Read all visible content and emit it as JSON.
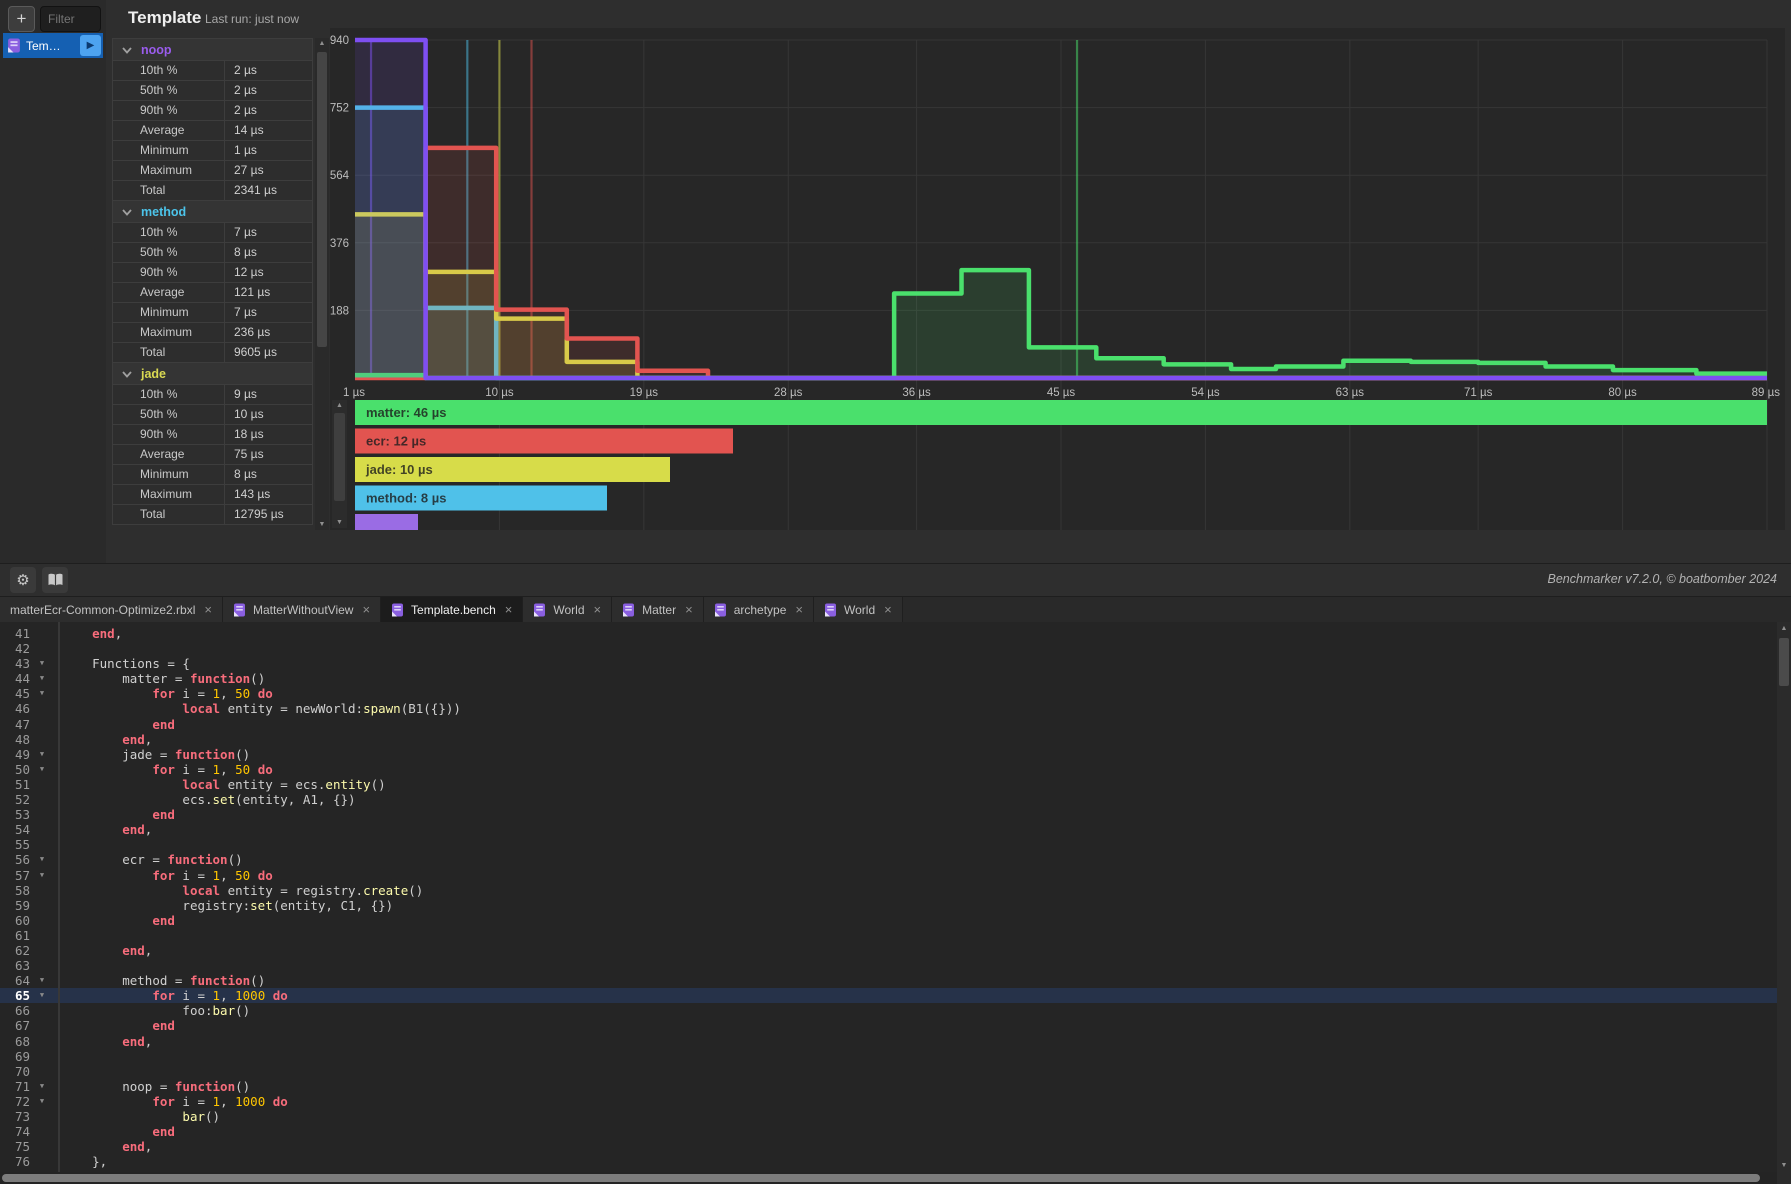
{
  "ui": {
    "add_button_glyph": "+",
    "filter_placeholder": "Filter",
    "play_glyph": "▶",
    "scroll_up_glyph": "▲",
    "scroll_down_glyph": "▼",
    "close_glyph": "×",
    "fold_glyph": "▼",
    "gear_glyph": "⚙"
  },
  "benchmark_list": {
    "items": [
      {
        "label": "Tem…",
        "selected": true
      }
    ]
  },
  "header": {
    "title": "Template",
    "last_run": "Last run: just now"
  },
  "stats": {
    "row_labels": [
      "10th %",
      "50th %",
      "90th %",
      "Average",
      "Minimum",
      "Maximum",
      "Total"
    ],
    "sections": [
      {
        "name": "noop",
        "color": "#9a5ced",
        "rows": [
          [
            "10th %",
            "2 µs"
          ],
          [
            "50th %",
            "2 µs"
          ],
          [
            "90th %",
            "2 µs"
          ],
          [
            "Average",
            "14 µs"
          ],
          [
            "Minimum",
            "1 µs"
          ],
          [
            "Maximum",
            "27 µs"
          ],
          [
            "Total",
            "2341 µs"
          ]
        ]
      },
      {
        "name": "method",
        "color": "#4cc4ea",
        "rows": [
          [
            "10th %",
            "7 µs"
          ],
          [
            "50th %",
            "8 µs"
          ],
          [
            "90th %",
            "12 µs"
          ],
          [
            "Average",
            "121 µs"
          ],
          [
            "Minimum",
            "7 µs"
          ],
          [
            "Maximum",
            "236 µs"
          ],
          [
            "Total",
            "9605 µs"
          ]
        ]
      },
      {
        "name": "jade",
        "color": "#d9d952",
        "rows": [
          [
            "10th %",
            "9 µs"
          ],
          [
            "50th %",
            "10 µs"
          ],
          [
            "90th %",
            "18 µs"
          ],
          [
            "Average",
            "75 µs"
          ],
          [
            "Minimum",
            "8 µs"
          ],
          [
            "Maximum",
            "143 µs"
          ],
          [
            "Total",
            "12795 µs"
          ]
        ]
      }
    ]
  },
  "chart_data": {
    "type": "histogram-step",
    "title": "Benchmark run-time distribution (counts vs microseconds)",
    "x_ticks": [
      "1 µs",
      "10 µs",
      "19 µs",
      "28 µs",
      "36 µs",
      "45 µs",
      "54 µs",
      "63 µs",
      "71 µs",
      "80 µs",
      "89 µs"
    ],
    "x_tick_values": [
      1,
      10,
      19,
      28,
      36,
      45,
      54,
      63,
      71,
      80,
      89
    ],
    "y_ticks": [
      188,
      376,
      564,
      752,
      940
    ],
    "x_range_us": [
      1,
      89
    ],
    "y_range": [
      0,
      940
    ],
    "grid": true,
    "series_draw_order_note": "listed back-to-front",
    "series": [
      {
        "name": "method",
        "color": "#4fc1e9",
        "p50_us": 8,
        "steps": [
          [
            1,
            752
          ],
          [
            5.4,
            195
          ],
          [
            9.8,
            0
          ]
        ]
      },
      {
        "name": "jade",
        "color": "#d7dc49",
        "p50_us": 10,
        "steps": [
          [
            1,
            455
          ],
          [
            5.4,
            295
          ],
          [
            9.8,
            165
          ],
          [
            14.2,
            45
          ],
          [
            18.6,
            0
          ]
        ]
      },
      {
        "name": "ecr",
        "color": "#e25450",
        "p50_us": 12,
        "steps": [
          [
            1,
            0
          ],
          [
            5.4,
            640
          ],
          [
            9.8,
            190
          ],
          [
            14.2,
            110
          ],
          [
            18.6,
            20
          ],
          [
            23,
            0
          ]
        ]
      },
      {
        "name": "matter",
        "color": "#4ae06c",
        "p50_us": 46,
        "steps": [
          [
            1,
            8
          ],
          [
            5.4,
            0
          ],
          [
            34.6,
            235
          ],
          [
            38.8,
            300
          ],
          [
            43,
            85
          ],
          [
            47.2,
            55
          ],
          [
            51.4,
            38
          ],
          [
            55.6,
            25
          ],
          [
            58.4,
            32
          ],
          [
            62.6,
            48
          ],
          [
            66.8,
            45
          ],
          [
            71,
            42
          ],
          [
            75.2,
            32
          ],
          [
            79.4,
            22
          ],
          [
            84.6,
            12
          ]
        ]
      },
      {
        "name": "noop",
        "color": "#7e4ff2",
        "p50_us": 2,
        "steps": [
          [
            1,
            940
          ],
          [
            5.4,
            0
          ]
        ]
      }
    ],
    "legend_bars": [
      {
        "name": "matter",
        "label": "matter: 46 µs",
        "value_us": 46,
        "color": "#4ae06c"
      },
      {
        "name": "ecr",
        "label": "ecr: 12 µs",
        "value_us": 12,
        "color": "#e25450"
      },
      {
        "name": "jade",
        "label": "jade: 10 µs",
        "value_us": 10,
        "color": "#d7dc49"
      },
      {
        "name": "method",
        "label": "method: 8 µs",
        "value_us": 8,
        "color": "#4fc1e9"
      },
      {
        "name": "noop",
        "label": "",
        "value_us": 2,
        "color": "#9a6ce4"
      }
    ]
  },
  "toolbar": {
    "credit": "Benchmarker v7.2.0, © boatbomber 2024"
  },
  "tabs": [
    {
      "label": "matterEcr-Common-Optimize2.rbxl",
      "icon": false,
      "active": false
    },
    {
      "label": "MatterWithoutView",
      "icon": true,
      "active": false
    },
    {
      "label": "Template.bench",
      "icon": true,
      "active": true
    },
    {
      "label": "World",
      "icon": true,
      "active": false
    },
    {
      "label": "Matter",
      "icon": true,
      "active": false
    },
    {
      "label": "archetype",
      "icon": true,
      "active": false
    },
    {
      "label": "World",
      "icon": true,
      "active": false
    }
  ],
  "editor": {
    "lines": [
      {
        "n": 41,
        "indent": 1,
        "fold": false,
        "current": false,
        "tokens": [
          [
            "kw",
            "end"
          ],
          [
            "txt",
            ","
          ]
        ]
      },
      {
        "n": 42,
        "indent": 0,
        "fold": false,
        "current": false,
        "tokens": []
      },
      {
        "n": 43,
        "indent": 1,
        "fold": true,
        "current": false,
        "tokens": [
          [
            "txt",
            "Functions = {"
          ]
        ]
      },
      {
        "n": 44,
        "indent": 2,
        "fold": true,
        "current": false,
        "tokens": [
          [
            "txt",
            "matter = "
          ],
          [
            "kw",
            "function"
          ],
          [
            "txt",
            "()"
          ]
        ]
      },
      {
        "n": 45,
        "indent": 3,
        "fold": true,
        "current": false,
        "tokens": [
          [
            "kw",
            "for"
          ],
          [
            "txt",
            " i = "
          ],
          [
            "num",
            "1"
          ],
          [
            "txt",
            ", "
          ],
          [
            "num",
            "50"
          ],
          [
            "txt",
            " "
          ],
          [
            "kw",
            "do"
          ]
        ]
      },
      {
        "n": 46,
        "indent": 4,
        "fold": false,
        "current": false,
        "tokens": [
          [
            "kw",
            "local"
          ],
          [
            "txt",
            " entity = newWorld:"
          ],
          [
            "fn",
            "spawn"
          ],
          [
            "txt",
            "(B1({}))"
          ]
        ]
      },
      {
        "n": 47,
        "indent": 3,
        "fold": false,
        "current": false,
        "tokens": [
          [
            "kw",
            "end"
          ]
        ]
      },
      {
        "n": 48,
        "indent": 2,
        "fold": false,
        "current": false,
        "tokens": [
          [
            "kw",
            "end"
          ],
          [
            "txt",
            ","
          ]
        ]
      },
      {
        "n": 49,
        "indent": 2,
        "fold": true,
        "current": false,
        "tokens": [
          [
            "txt",
            "jade = "
          ],
          [
            "kw",
            "function"
          ],
          [
            "txt",
            "()"
          ]
        ]
      },
      {
        "n": 50,
        "indent": 3,
        "fold": true,
        "current": false,
        "tokens": [
          [
            "kw",
            "for"
          ],
          [
            "txt",
            " i = "
          ],
          [
            "num",
            "1"
          ],
          [
            "txt",
            ", "
          ],
          [
            "num",
            "50"
          ],
          [
            "txt",
            " "
          ],
          [
            "kw",
            "do"
          ]
        ]
      },
      {
        "n": 51,
        "indent": 4,
        "fold": false,
        "current": false,
        "tokens": [
          [
            "kw",
            "local"
          ],
          [
            "txt",
            " entity = ecs."
          ],
          [
            "fn",
            "entity"
          ],
          [
            "txt",
            "()"
          ]
        ]
      },
      {
        "n": 52,
        "indent": 4,
        "fold": false,
        "current": false,
        "tokens": [
          [
            "txt",
            "ecs."
          ],
          [
            "fn",
            "set"
          ],
          [
            "txt",
            "(entity, A1, {})"
          ]
        ]
      },
      {
        "n": 53,
        "indent": 3,
        "fold": false,
        "current": false,
        "tokens": [
          [
            "kw",
            "end"
          ]
        ]
      },
      {
        "n": 54,
        "indent": 2,
        "fold": false,
        "current": false,
        "tokens": [
          [
            "kw",
            "end"
          ],
          [
            "txt",
            ","
          ]
        ]
      },
      {
        "n": 55,
        "indent": 0,
        "fold": false,
        "current": false,
        "tokens": []
      },
      {
        "n": 56,
        "indent": 2,
        "fold": true,
        "current": false,
        "tokens": [
          [
            "txt",
            "ecr = "
          ],
          [
            "kw",
            "function"
          ],
          [
            "txt",
            "()"
          ]
        ]
      },
      {
        "n": 57,
        "indent": 3,
        "fold": true,
        "current": false,
        "tokens": [
          [
            "kw",
            "for"
          ],
          [
            "txt",
            " i = "
          ],
          [
            "num",
            "1"
          ],
          [
            "txt",
            ", "
          ],
          [
            "num",
            "50"
          ],
          [
            "txt",
            " "
          ],
          [
            "kw",
            "do"
          ]
        ]
      },
      {
        "n": 58,
        "indent": 4,
        "fold": false,
        "current": false,
        "tokens": [
          [
            "kw",
            "local"
          ],
          [
            "txt",
            " entity = registry."
          ],
          [
            "fn",
            "create"
          ],
          [
            "txt",
            "()"
          ]
        ]
      },
      {
        "n": 59,
        "indent": 4,
        "fold": false,
        "current": false,
        "tokens": [
          [
            "txt",
            "registry:"
          ],
          [
            "fn",
            "set"
          ],
          [
            "txt",
            "(entity, C1, {})"
          ]
        ]
      },
      {
        "n": 60,
        "indent": 3,
        "fold": false,
        "current": false,
        "tokens": [
          [
            "kw",
            "end"
          ]
        ]
      },
      {
        "n": 61,
        "indent": 0,
        "fold": false,
        "current": false,
        "tokens": []
      },
      {
        "n": 62,
        "indent": 2,
        "fold": false,
        "current": false,
        "tokens": [
          [
            "kw",
            "end"
          ],
          [
            "txt",
            ","
          ]
        ]
      },
      {
        "n": 63,
        "indent": 0,
        "fold": false,
        "current": false,
        "tokens": []
      },
      {
        "n": 64,
        "indent": 2,
        "fold": true,
        "current": false,
        "tokens": [
          [
            "txt",
            "method = "
          ],
          [
            "kw",
            "function"
          ],
          [
            "txt",
            "()"
          ]
        ]
      },
      {
        "n": 65,
        "indent": 3,
        "fold": true,
        "current": true,
        "tokens": [
          [
            "kw",
            "for"
          ],
          [
            "txt",
            " i = "
          ],
          [
            "num",
            "1"
          ],
          [
            "txt",
            ", "
          ],
          [
            "num",
            "1000"
          ],
          [
            "txt",
            " "
          ],
          [
            "kw",
            "do"
          ]
        ]
      },
      {
        "n": 66,
        "indent": 4,
        "fold": false,
        "current": false,
        "tokens": [
          [
            "txt",
            "foo:"
          ],
          [
            "fn",
            "bar"
          ],
          [
            "txt",
            "()"
          ]
        ]
      },
      {
        "n": 67,
        "indent": 3,
        "fold": false,
        "current": false,
        "tokens": [
          [
            "kw",
            "end"
          ]
        ]
      },
      {
        "n": 68,
        "indent": 2,
        "fold": false,
        "current": false,
        "tokens": [
          [
            "kw",
            "end"
          ],
          [
            "txt",
            ","
          ]
        ]
      },
      {
        "n": 69,
        "indent": 0,
        "fold": false,
        "current": false,
        "tokens": []
      },
      {
        "n": 70,
        "indent": 0,
        "fold": false,
        "current": false,
        "tokens": []
      },
      {
        "n": 71,
        "indent": 2,
        "fold": true,
        "current": false,
        "tokens": [
          [
            "txt",
            "noop = "
          ],
          [
            "kw",
            "function"
          ],
          [
            "txt",
            "()"
          ]
        ]
      },
      {
        "n": 72,
        "indent": 3,
        "fold": true,
        "current": false,
        "tokens": [
          [
            "kw",
            "for"
          ],
          [
            "txt",
            " i = "
          ],
          [
            "num",
            "1"
          ],
          [
            "txt",
            ", "
          ],
          [
            "num",
            "1000"
          ],
          [
            "txt",
            " "
          ],
          [
            "kw",
            "do"
          ]
        ]
      },
      {
        "n": 73,
        "indent": 4,
        "fold": false,
        "current": false,
        "tokens": [
          [
            "fn",
            "bar"
          ],
          [
            "txt",
            "()"
          ]
        ]
      },
      {
        "n": 74,
        "indent": 3,
        "fold": false,
        "current": false,
        "tokens": [
          [
            "kw",
            "end"
          ]
        ]
      },
      {
        "n": 75,
        "indent": 2,
        "fold": false,
        "current": false,
        "tokens": [
          [
            "kw",
            "end"
          ],
          [
            "txt",
            ","
          ]
        ]
      },
      {
        "n": 76,
        "indent": 1,
        "fold": false,
        "current": false,
        "tokens": [
          [
            "txt",
            "},"
          ]
        ]
      }
    ]
  }
}
